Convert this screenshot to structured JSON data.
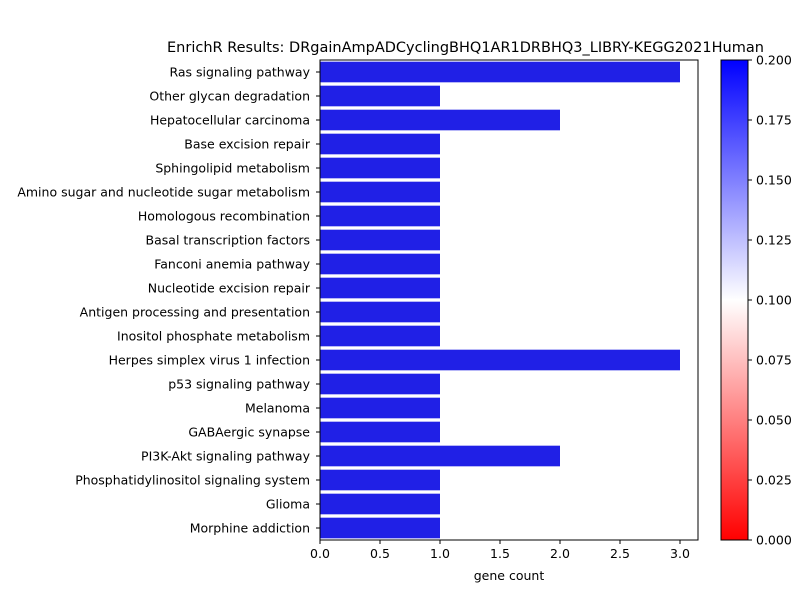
{
  "chart_data": {
    "type": "bar",
    "orientation": "horizontal",
    "title": "EnrichR Results: DRgainAmpADCyclingBHQ1AR1DRBHQ3_LIBRY-KEGG2021Human",
    "xlabel": "gene count",
    "ylabel": "",
    "xlim": [
      0,
      3.15
    ],
    "x_ticks": [
      "0.0",
      "0.5",
      "1.0",
      "1.5",
      "2.0",
      "2.5",
      "3.0"
    ],
    "grid": false,
    "categories": [
      "Ras signaling pathway",
      "Other glycan degradation",
      "Hepatocellular carcinoma",
      "Base excision repair",
      "Sphingolipid metabolism",
      "Amino sugar and nucleotide sugar metabolism",
      "Homologous recombination",
      "Basal transcription factors",
      "Fanconi anemia pathway",
      "Nucleotide excision repair",
      "Antigen processing and presentation",
      "Inositol phosphate metabolism",
      "Herpes simplex virus 1 infection",
      "p53 signaling pathway",
      "Melanoma",
      "GABAergic synapse",
      "PI3K-Akt signaling pathway",
      "Phosphatidylinositol signaling system",
      "Glioma",
      "Morphine addiction"
    ],
    "values": [
      3,
      1,
      2,
      1,
      1,
      1,
      1,
      1,
      1,
      1,
      1,
      1,
      3,
      1,
      1,
      1,
      2,
      1,
      1,
      1
    ],
    "bar_color": "#2020e6",
    "colorbar": {
      "range": [
        0.0,
        0.2
      ],
      "ticks": [
        "0.000",
        "0.025",
        "0.050",
        "0.075",
        "0.100",
        "0.125",
        "0.150",
        "0.175",
        "0.200"
      ],
      "colors": [
        "#ff0000",
        "#ffffff",
        "#0000ff"
      ]
    }
  }
}
